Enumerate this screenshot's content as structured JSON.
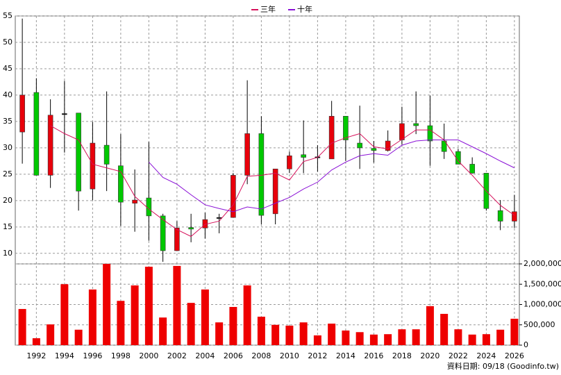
{
  "chart_data": [
    {
      "type": "candlestick",
      "x": [
        1991,
        1992,
        1993,
        1994,
        1995,
        1996,
        1997,
        1998,
        1999,
        2000,
        2001,
        2002,
        2003,
        2004,
        2005,
        2006,
        2007,
        2008,
        2009,
        2010,
        2011,
        2012,
        2013,
        2014,
        2015,
        2016,
        2017,
        2018,
        2019,
        2020,
        2021,
        2022,
        2023,
        2024,
        2025,
        2026
      ],
      "open": [
        33,
        40.5,
        24.8,
        36.5,
        36.6,
        22.2,
        30.5,
        26.6,
        19.5,
        20.5,
        17.1,
        10.5,
        14.9,
        14.8,
        16.8,
        16.8,
        24.8,
        32.7,
        17.5,
        26,
        28.7,
        28.3,
        27.9,
        36,
        30.9,
        29.9,
        29.5,
        31.5,
        34.6,
        34.2,
        31.3,
        29.3,
        26.9,
        25.2,
        18.1,
        16.1
      ],
      "high": [
        54.5,
        43.2,
        39.2,
        42.7,
        36.6,
        34.9,
        40.7,
        32.6,
        25.9,
        31.1,
        17.5,
        16.1,
        17.5,
        17.7,
        17.5,
        25.2,
        42.8,
        36,
        26,
        29.3,
        35.2,
        30.5,
        38.9,
        36,
        38,
        31.3,
        33.3,
        37.8,
        40.7,
        39.9,
        34.6,
        29.8,
        28.2,
        25.2,
        20.1,
        21.1
      ],
      "low": [
        27,
        24.8,
        22.4,
        29.1,
        18.1,
        20.1,
        21.8,
        15.2,
        14.1,
        12.4,
        8.4,
        10.5,
        12.1,
        12.8,
        13.8,
        16.8,
        23.1,
        15.5,
        15.5,
        25.2,
        25.2,
        25.5,
        27.9,
        27.5,
        26,
        27.2,
        29.3,
        30.6,
        32.6,
        26.6,
        27.9,
        26.9,
        25.1,
        18.1,
        14.4,
        14.8
      ],
      "close": [
        40,
        24.8,
        36.2,
        36.5,
        21.8,
        30.9,
        26.9,
        19.7,
        20.1,
        17.1,
        10.5,
        14.8,
        14.6,
        16.4,
        16.8,
        24.8,
        32.7,
        17.2,
        26,
        28.5,
        28.2,
        28.3,
        36,
        31.5,
        30,
        29.5,
        31.3,
        34.6,
        34.2,
        31.3,
        29.3,
        26.9,
        25.2,
        18.5,
        16.1,
        17.9
      ],
      "up_color": "#e8000b",
      "down_color": "#00c800",
      "flat_color": "#000000",
      "series": [
        {
          "name": "三年",
          "color": "#d6105a",
          "values": [
            null,
            null,
            34.2,
            32.7,
            31.5,
            26.9,
            26.2,
            25.5,
            20.8,
            18.4,
            16.4,
            14.5,
            13.2,
            15.5,
            16.1,
            19.2,
            24.6,
            24.8,
            25.2,
            23.9,
            27.4,
            28.2,
            30.9,
            31.9,
            32.7,
            30.2,
            29.8,
            31.6,
            33.4,
            33.4,
            31.5,
            27.5,
            24.8,
            21.8,
            19.1,
            17.2
          ]
        },
        {
          "name": "十年",
          "color": "#8a10d6",
          "values": [
            null,
            null,
            null,
            null,
            null,
            null,
            null,
            null,
            null,
            27.3,
            24.4,
            23.1,
            21.1,
            19.2,
            18.5,
            17.9,
            18.8,
            18.4,
            19.5,
            20.6,
            22.2,
            23.5,
            25.8,
            27.3,
            28.5,
            28.9,
            28.6,
            30.5,
            31.3,
            31.5,
            31.5,
            31.5,
            30.2,
            28.9,
            27.5,
            26.2
          ]
        }
      ],
      "ylim": [
        8,
        55
      ],
      "yticks": [
        10,
        15,
        20,
        25,
        30,
        35,
        40,
        45,
        50,
        55
      ],
      "grid": true
    },
    {
      "type": "bar",
      "x": [
        1991,
        1992,
        1993,
        1994,
        1995,
        1996,
        1997,
        1998,
        1999,
        2000,
        2001,
        2002,
        2003,
        2004,
        2005,
        2006,
        2007,
        2008,
        2009,
        2010,
        2011,
        2012,
        2013,
        2014,
        2015,
        2016,
        2017,
        2018,
        2019,
        2020,
        2021,
        2022,
        2023,
        2024,
        2025,
        2026
      ],
      "values": [
        890000,
        170000,
        510000,
        1500000,
        380000,
        1370000,
        2000000,
        1090000,
        1470000,
        1930000,
        680000,
        1950000,
        1040000,
        1370000,
        560000,
        940000,
        1470000,
        700000,
        500000,
        480000,
        560000,
        240000,
        530000,
        360000,
        320000,
        260000,
        270000,
        390000,
        390000,
        960000,
        770000,
        390000,
        260000,
        270000,
        380000,
        650000
      ],
      "color": "#ee0000",
      "xlim": [
        1990.5,
        2026.35
      ],
      "xticks": [
        1992,
        1994,
        1996,
        1998,
        2000,
        2002,
        2004,
        2006,
        2008,
        2010,
        2012,
        2014,
        2016,
        2018,
        2020,
        2022,
        2024,
        2026
      ],
      "ylim": [
        0,
        2000000
      ],
      "yticks": [
        0,
        {
          "value": 500000,
          "label": "500,000"
        },
        {
          "value": 1000000,
          "label": "1,000,000"
        },
        {
          "value": 1500000,
          "label": "1,500,000"
        },
        {
          "value": 2000000,
          "label": "2,000,000"
        }
      ],
      "grid": true,
      "source": "資料日期: 09/18 (Goodinfo.tw)"
    }
  ]
}
